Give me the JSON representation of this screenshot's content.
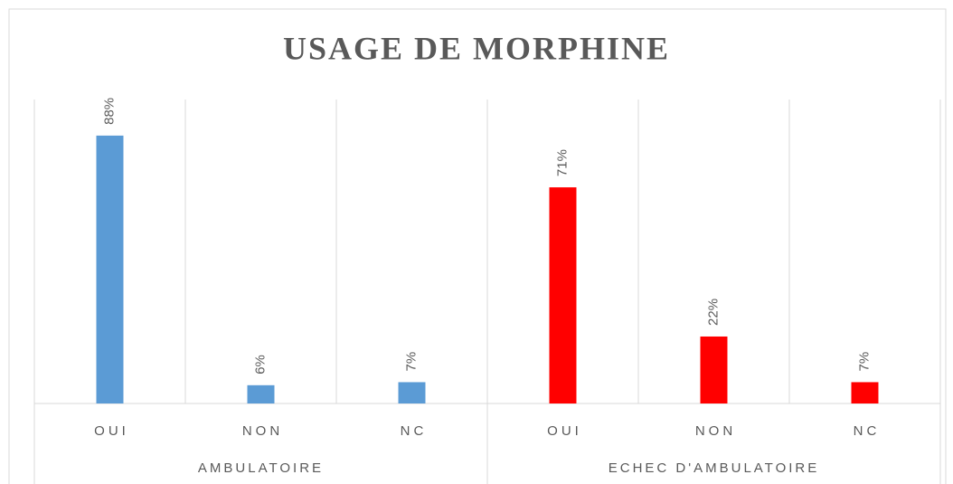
{
  "chart_data": {
    "type": "bar",
    "title": "USAGE DE MORPHINE",
    "groups": [
      {
        "name": "AMBULATOIRE",
        "color": "#5b9bd5",
        "categories": [
          "OUI",
          "NON",
          "NC"
        ],
        "values": [
          88,
          6,
          7
        ],
        "value_labels": [
          "88%",
          "6%",
          "7%"
        ]
      },
      {
        "name": "ECHEC D'AMBULATOIRE",
        "color": "#ff0000",
        "categories": [
          "OUI",
          "NON",
          "NC"
        ],
        "values": [
          71,
          22,
          7
        ],
        "value_labels": [
          "71%",
          "22%",
          "7%"
        ]
      }
    ]
  }
}
